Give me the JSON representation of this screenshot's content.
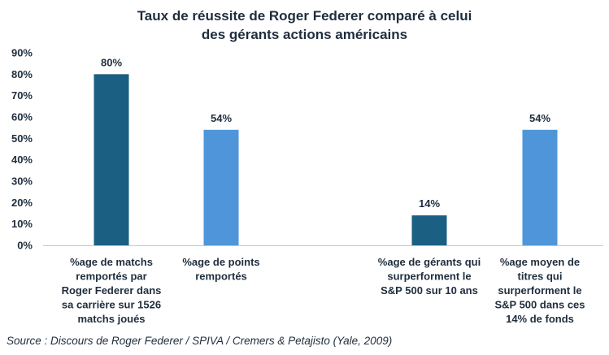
{
  "chart_data": {
    "type": "bar",
    "title_lines": [
      "Taux de réussite de Roger Federer comparé à celui",
      "des gérants actions américains"
    ],
    "categories": [
      {
        "lines": [
          "%age de matchs",
          "remportés par",
          "Roger Federer dans",
          "sa carrière sur 1526",
          "matchs joués"
        ],
        "value": 80,
        "label": "80%",
        "color": "#1b5f82"
      },
      {
        "lines": [
          "%age de points",
          "remportés"
        ],
        "value": 54,
        "label": "54%",
        "color": "#4e96d9"
      },
      {
        "lines": [
          "%age de gérants qui",
          "surperforment le",
          "S&P 500 sur 10 ans"
        ],
        "value": 14,
        "label": "14%",
        "color": "#1b5f82"
      },
      {
        "lines": [
          "%age moyen de",
          "titres qui",
          "surperforment le",
          "S&P 500 dans ces",
          "14% de fonds"
        ],
        "value": 54,
        "label": "54%",
        "color": "#4e96d9"
      }
    ],
    "ylim": [
      0,
      90
    ],
    "yticks": [
      "0%",
      "10%",
      "20%",
      "30%",
      "40%",
      "50%",
      "60%",
      "70%",
      "80%",
      "90%"
    ],
    "xlabel": "",
    "ylabel": "",
    "grid": false
  },
  "source": "Source : Discours de Roger Federer / SPIVA / Cremers & Petajisto (Yale, 2009)"
}
